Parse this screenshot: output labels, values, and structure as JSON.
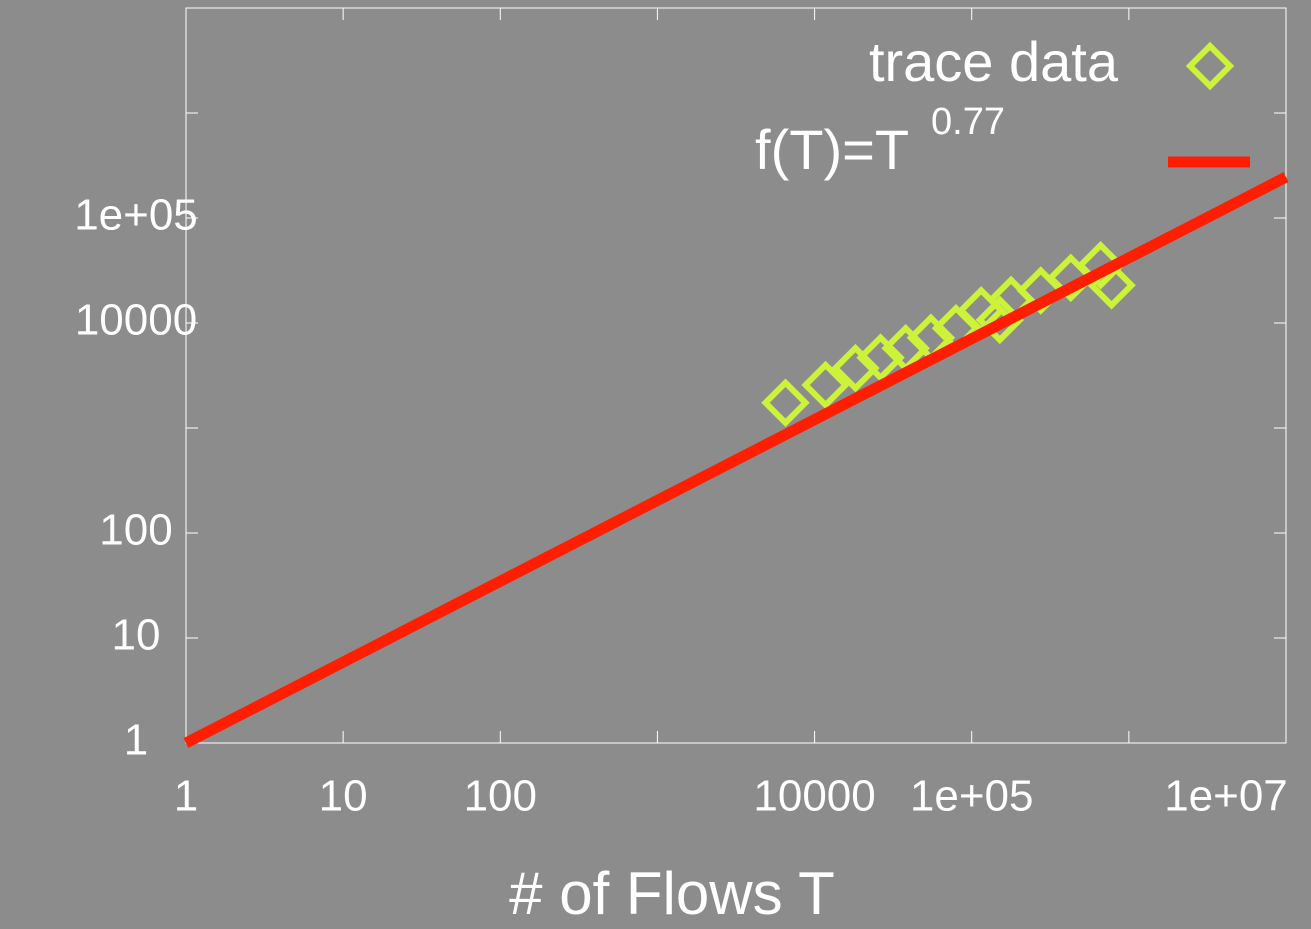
{
  "chart_data": {
    "type": "scatter",
    "xlabel": "# of Flows T",
    "xscale": "log",
    "yscale": "log",
    "xlim": [
      1,
      10000000
    ],
    "ylim": [
      1,
      10000000
    ],
    "xticks": [
      1,
      10,
      100,
      {
        "value": 1000,
        "label": null
      },
      10000,
      {
        "value": 100000,
        "label": "1e+05"
      },
      {
        "value": 1000000,
        "label": null
      },
      {
        "value": 10000000,
        "label": "1e+07"
      }
    ],
    "yticks": [
      1,
      10,
      100,
      {
        "value": 1000,
        "label": null
      },
      10000,
      {
        "value": 100000,
        "label": "1e+05"
      },
      {
        "value": 1000000,
        "label": null
      },
      {
        "value": 10000000,
        "label": null
      }
    ],
    "legend": "upper right",
    "series": [
      {
        "name": "trace data",
        "kind": "scatter",
        "color": "#ccf23a",
        "x": [
          6530,
          11750,
          18200,
          26300,
          38000,
          55000,
          79400,
          114800,
          151000,
          178000,
          275000,
          427000,
          661000,
          776000
        ],
        "values": [
          1740,
          2570,
          3720,
          4680,
          5750,
          7240,
          8910,
          13200,
          10700,
          16600,
          20400,
          26900,
          35500,
          22900
        ]
      },
      {
        "name": "f(T)=T",
        "exponent_label": "0.77",
        "kind": "line",
        "color": "#ff1e00",
        "x": [
          1,
          10000000
        ],
        "values": [
          1,
          245470
        ]
      }
    ]
  }
}
